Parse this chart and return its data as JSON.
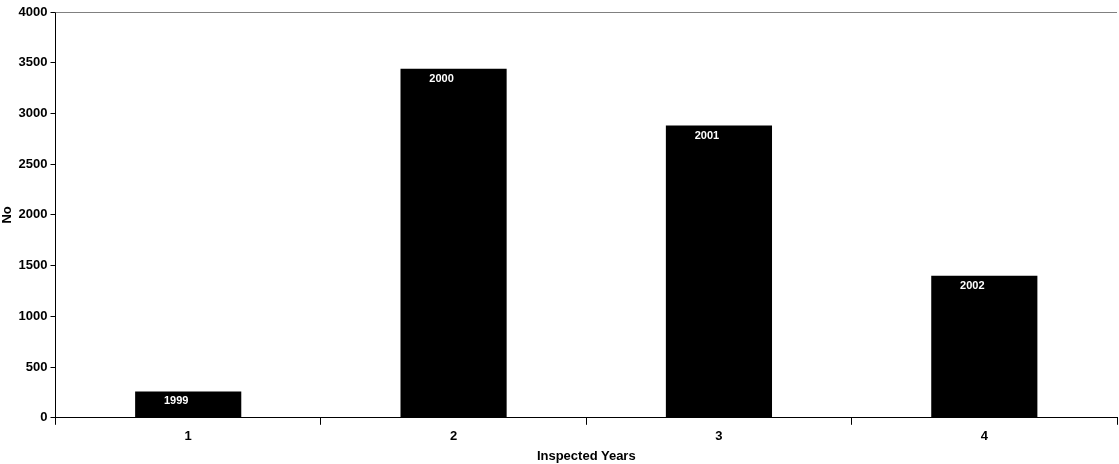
{
  "chart_data": {
    "type": "bar",
    "xlabel": "Inspected Years",
    "ylabel": "No",
    "categories": [
      "1",
      "2",
      "3",
      "4"
    ],
    "values": [
      260,
      3440,
      2880,
      1400
    ],
    "color": "#000000",
    "ylim": [
      0,
      4000
    ],
    "yticks": [
      0,
      500,
      1000,
      1500,
      2000,
      2500,
      3000,
      3500,
      4000
    ],
    "grid": false,
    "legend": false,
    "annotations": [
      "1999",
      "2000",
      "2001",
      "2002"
    ]
  }
}
